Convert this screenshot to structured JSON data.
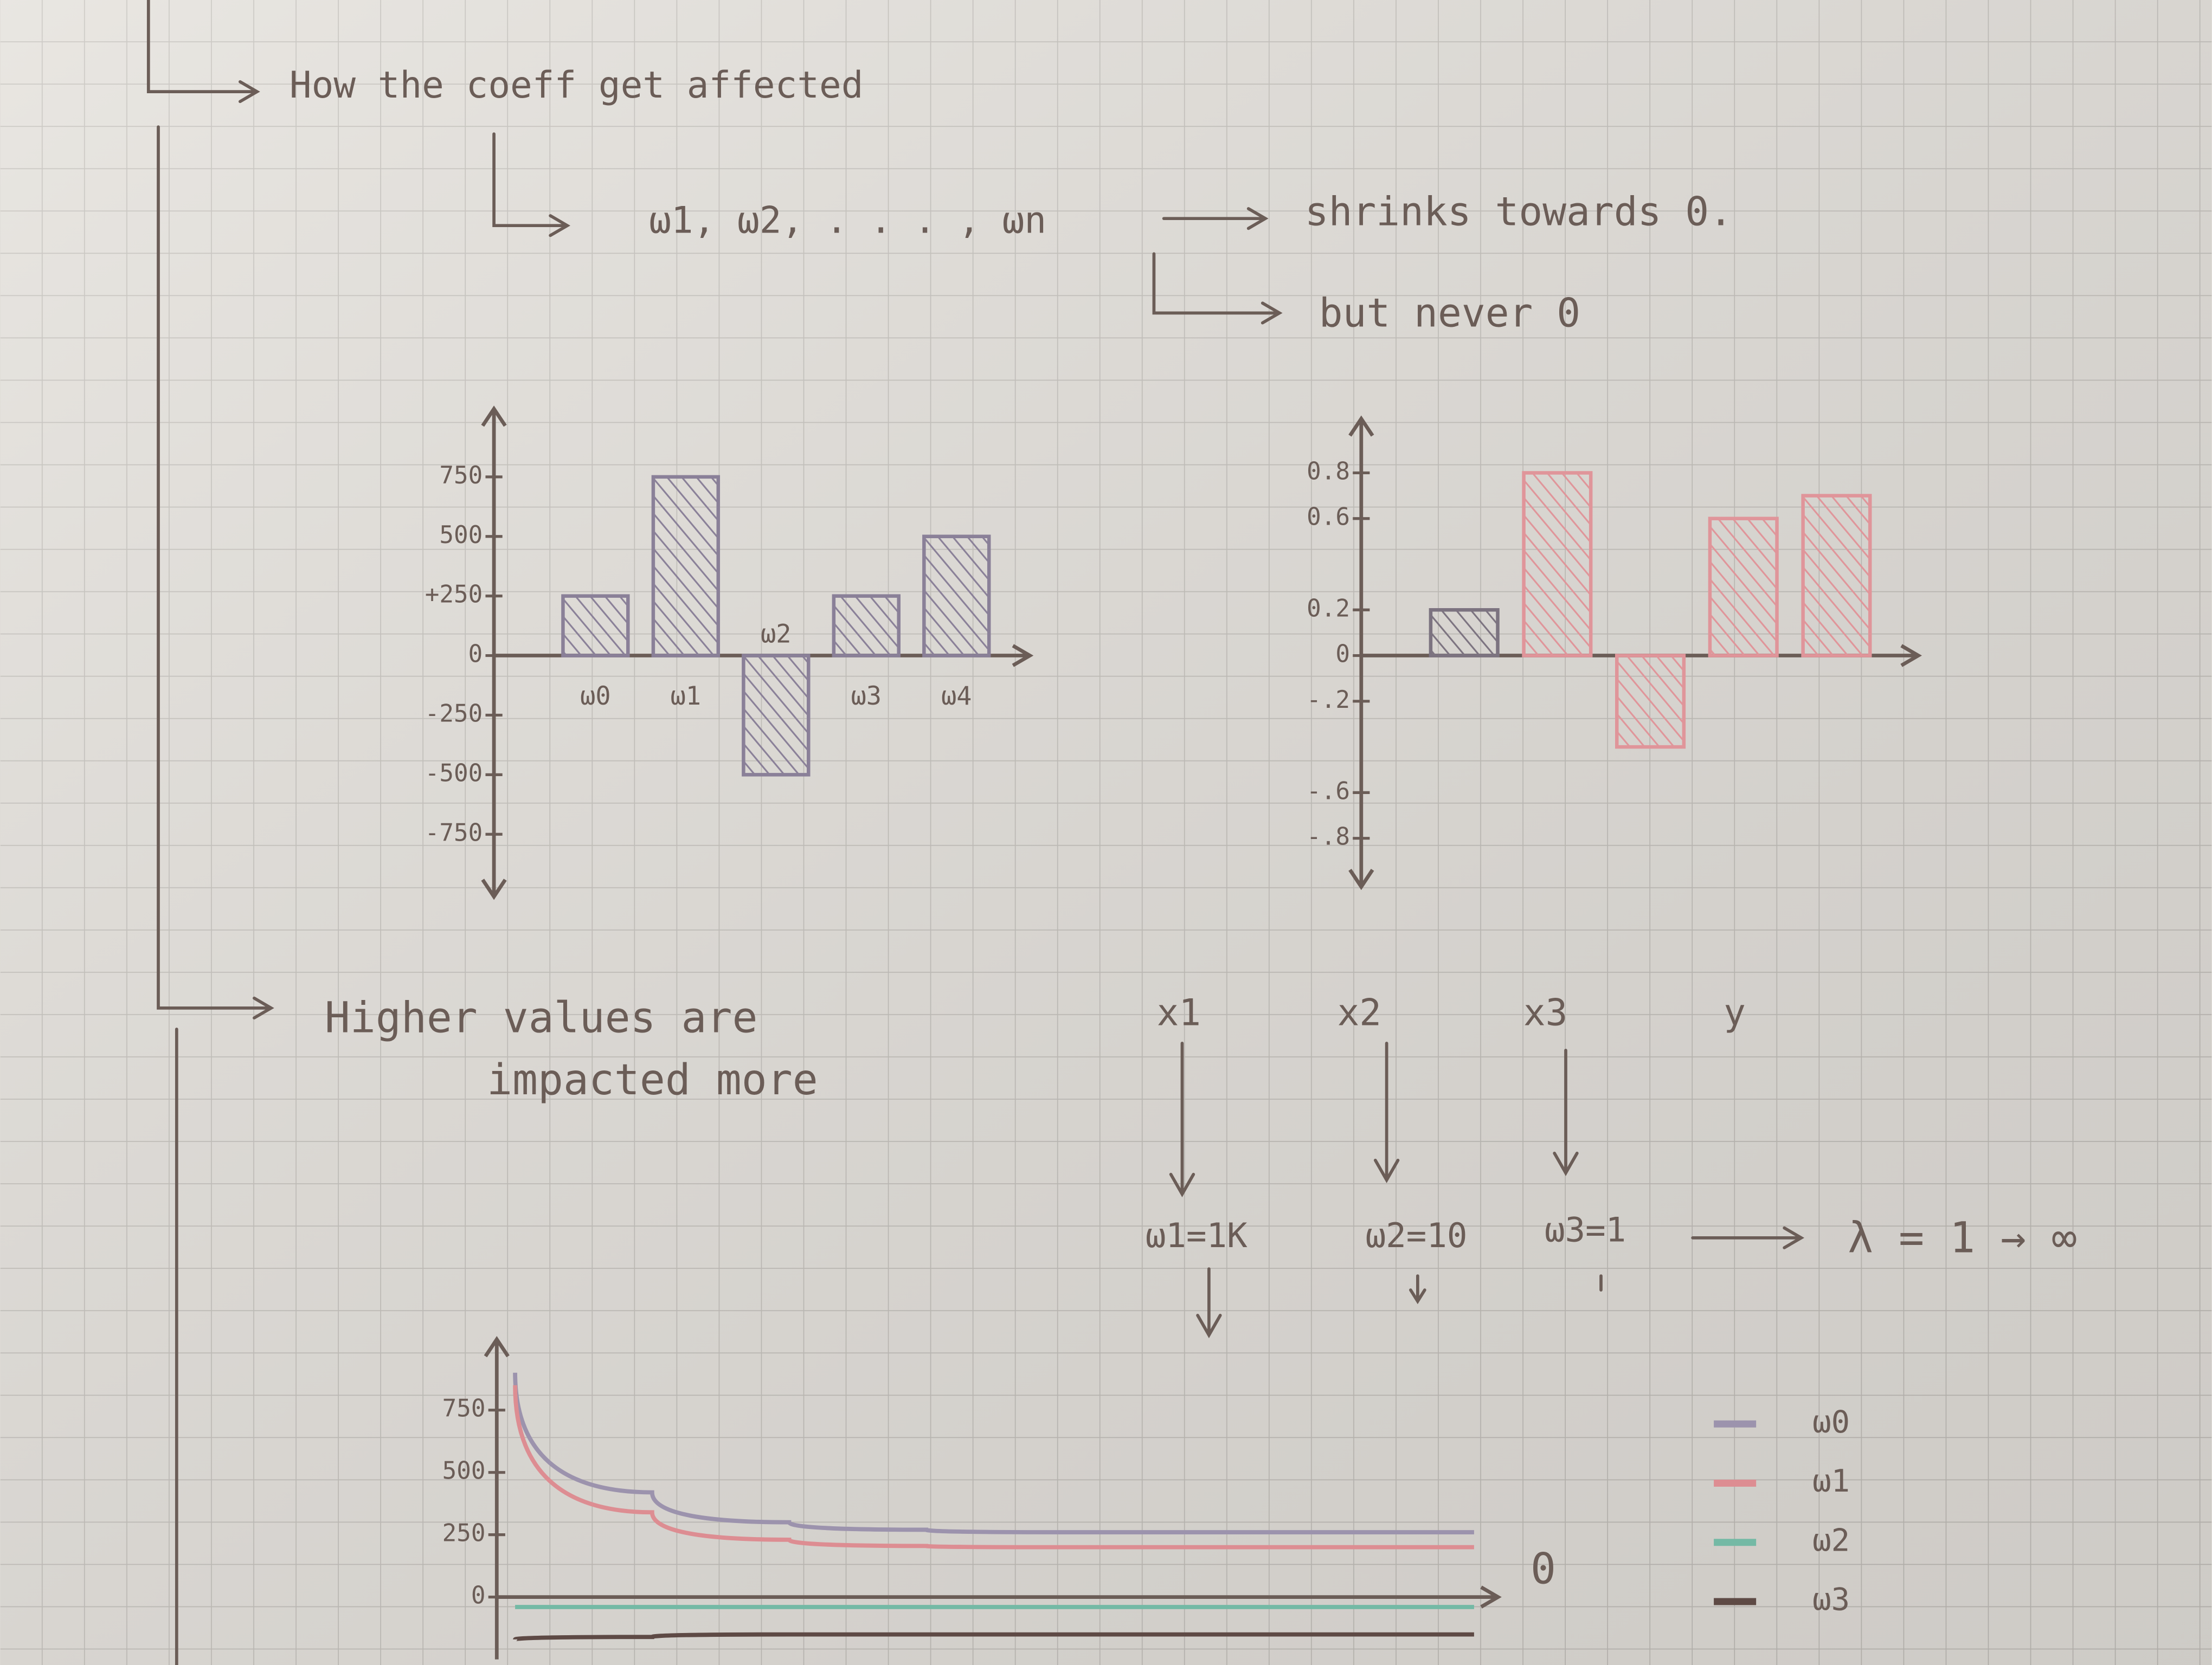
{
  "notes": {
    "heading": "How the coeff get affected",
    "coeffs": "ω1, ω2, . . . , ωn",
    "shrinks": "shrinks towards 0.",
    "never": "but never 0",
    "higher": "Higher values are",
    "impacted": "impacted more",
    "features": [
      "x1",
      "x2",
      "x3",
      "y"
    ],
    "weights": [
      "ω1=1K",
      "ω2=10",
      "ω3=1"
    ],
    "lambda": "λ = 1 → ∞"
  },
  "chart_data": [
    {
      "type": "bar",
      "categories": [
        "ω0",
        "ω1",
        "ω2",
        "ω3",
        "ω4"
      ],
      "values": [
        250,
        750,
        -500,
        250,
        500
      ],
      "colors": [
        "#8a8098",
        "#8a8098",
        "#8a8098",
        "#8a8098",
        "#8a8098"
      ],
      "ylim": [
        -1000,
        1000
      ],
      "yticks": [
        750,
        500,
        {
          "value": 250,
          "label": "+250"
        },
        0,
        -250,
        -500,
        -750
      ]
    },
    {
      "type": "bar",
      "categories": [
        null,
        null,
        null,
        null,
        null
      ],
      "values": [
        0.2,
        0.8,
        -0.4,
        0.6,
        0.7
      ],
      "colors": [
        "#7c7380",
        "#e0959a",
        "#e0959a",
        "#e0959a",
        "#e0959a"
      ],
      "ylim": [
        -1,
        1
      ],
      "yticks": [
        0.8,
        0.6,
        0.2,
        0,
        {
          "value": -0.2,
          "label": "-.2"
        },
        {
          "value": -0.6,
          "label": "-.6"
        },
        {
          "value": -0.8,
          "label": "-.8"
        }
      ]
    },
    {
      "type": "line",
      "categories": [
        null,
        null,
        null,
        null,
        null,
        null,
        null,
        null
      ],
      "annotation": "0",
      "ylim": [
        -250,
        1000
      ],
      "yticks": [
        750,
        500,
        250,
        0
      ],
      "series": [
        {
          "name": "ω0",
          "color": "#9c93ad",
          "values": [
            900,
            420,
            300,
            270,
            260,
            260,
            260,
            260
          ]
        },
        {
          "name": "ω1",
          "color": "#dd8d92",
          "values": [
            850,
            340,
            230,
            205,
            200,
            200,
            200,
            200
          ]
        },
        {
          "name": "ω2",
          "color": "#74b9a5",
          "values": [
            -40,
            -40,
            -40,
            -40,
            -40,
            -40,
            -40,
            -40
          ]
        },
        {
          "name": "ω3",
          "color": "#5e4a45",
          "values": [
            -170,
            -160,
            -150,
            -150,
            -150,
            -150,
            -150,
            -150
          ]
        }
      ]
    }
  ]
}
